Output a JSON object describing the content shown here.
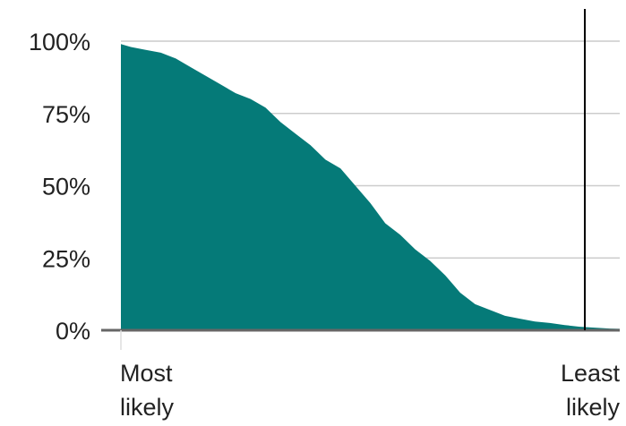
{
  "chart_data": {
    "type": "area",
    "y_ticks": [
      "0%",
      "25%",
      "50%",
      "75%",
      "100%"
    ],
    "ylim": [
      0,
      100
    ],
    "xlim": [
      0,
      100
    ],
    "x_start_label": [
      "Most",
      "likely"
    ],
    "x_end_label": [
      "Least",
      "likely"
    ],
    "grid": true,
    "fill_color": "#057A78",
    "marker_x": 93,
    "series": [
      {
        "x": [
          0,
          2,
          5,
          8,
          11,
          14,
          17,
          20,
          23,
          26,
          29,
          32,
          35,
          38,
          41,
          44,
          47,
          50,
          53,
          56,
          59,
          62,
          65,
          68,
          71,
          74,
          77,
          80,
          83,
          86,
          89,
          92,
          95,
          98,
          100
        ],
        "values": [
          99,
          98,
          97,
          96,
          94,
          91,
          88,
          85,
          82,
          80,
          77,
          72,
          68,
          64,
          59,
          56,
          50,
          44,
          37,
          33,
          28,
          24,
          19,
          13,
          9,
          7,
          5,
          4,
          3,
          2.5,
          1.8,
          1.2,
          0.9,
          0.6,
          0.5
        ]
      }
    ]
  }
}
